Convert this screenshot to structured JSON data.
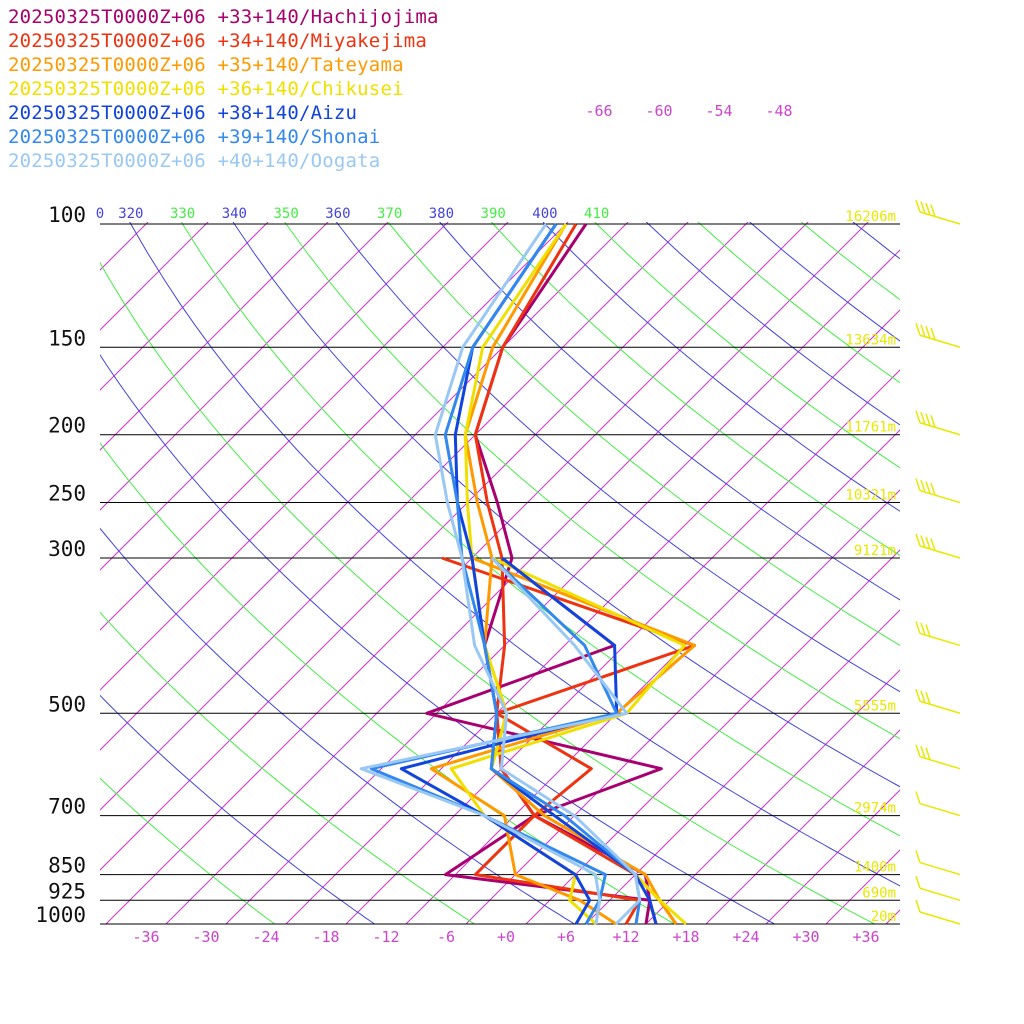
{
  "stations": [
    {
      "label": "20250325T0000Z+06 +33+140/Hachijojima",
      "color": "#a8006e"
    },
    {
      "label": "20250325T0000Z+06 +34+140/Miyakejima",
      "color": "#ee3311"
    },
    {
      "label": "20250325T0000Z+06 +35+140/Tateyama",
      "color": "#ff9900"
    },
    {
      "label": "20250325T0000Z+06 +36+140/Chikusei",
      "color": "#f0e000"
    },
    {
      "label": "20250325T0000Z+06 +38+140/Aizu",
      "color": "#1144dd"
    },
    {
      "label": "20250325T0000Z+06 +39+140/Shonai",
      "color": "#3388ee"
    },
    {
      "label": "20250325T0000Z+06 +40+140/Oogata",
      "color": "#99c8f4"
    }
  ],
  "colors": {
    "isotherm": "#cc33cc",
    "dry_adiabat_green": "#44ee44",
    "dry_adiabat_blue": "#4444dd",
    "isobar": "#000000",
    "height_label": "#e8e800",
    "wind_barb": "#e8e800"
  },
  "axes": {
    "pressure_ticks": [
      "100",
      "150",
      "200",
      "250",
      "300",
      "500",
      "700",
      "850",
      "925",
      "1000"
    ],
    "temperature_ticks": [
      "-36",
      "-30",
      "-24",
      "-18",
      "-12",
      "-6",
      "+0",
      "+6",
      "+12",
      "+18",
      "+24",
      "+30",
      "+36"
    ],
    "theta_labels": [
      "0",
      "320",
      "330",
      "340",
      "350",
      "360",
      "370",
      "380",
      "390",
      "400",
      "410"
    ],
    "height_labels": [
      "16206m",
      "13634m",
      "11761m",
      "10321m",
      "9121m",
      "5555m",
      "2974m",
      "1400m",
      "690m",
      "20m"
    ],
    "upper_isotherm_labels": [
      "-66",
      "-60",
      "-54",
      "-48"
    ]
  },
  "chart_data": {
    "type": "line",
    "title": "",
    "xlabel": "",
    "ylabel": "",
    "x_axis": "temperature (°C), skewed",
    "y_axis": "pressure (hPa), log scale",
    "ylim": [
      1000,
      100
    ],
    "xlim": [
      -40,
      40
    ],
    "series": [
      {
        "name": "20250325T0000Z+06 +33+140/Hachijojima",
        "points": [
          [
            1000,
            14,
            15
          ],
          [
            925,
            12,
            12
          ],
          [
            850,
            9,
            -11
          ],
          [
            700,
            -8,
            -8
          ],
          [
            600,
            -16,
            0
          ],
          [
            500,
            -22,
            -29
          ],
          [
            400,
            -30,
            -17
          ],
          [
            300,
            -36,
            -37
          ],
          [
            250,
            -43,
            null
          ],
          [
            200,
            -52,
            null
          ],
          [
            150,
            -58,
            null
          ],
          [
            100,
            -62,
            null
          ]
        ]
      },
      {
        "name": "20250325T0000Z+06 +34+140/Miyakejima",
        "points": [
          [
            1000,
            17,
            12
          ],
          [
            925,
            13,
            11
          ],
          [
            850,
            8,
            -8
          ],
          [
            700,
            -8,
            -8
          ],
          [
            600,
            -16,
            -7
          ],
          [
            500,
            -22,
            -22
          ],
          [
            400,
            -28,
            -9
          ],
          [
            300,
            -37,
            -43
          ],
          [
            250,
            -44,
            null
          ],
          [
            200,
            -52,
            null
          ],
          [
            150,
            -58,
            null
          ],
          [
            100,
            -63,
            null
          ]
        ]
      },
      {
        "name": "20250325T0000Z+06 +35+140/Tateyama",
        "points": [
          [
            1000,
            17,
            11
          ],
          [
            925,
            13,
            5
          ],
          [
            850,
            9,
            -4
          ],
          [
            700,
            -7,
            -11
          ],
          [
            600,
            -17,
            -23
          ],
          [
            500,
            -21,
            -10
          ],
          [
            400,
            -30,
            -9
          ],
          [
            300,
            -38,
            -40
          ],
          [
            250,
            -45,
            null
          ],
          [
            200,
            -53,
            null
          ],
          [
            150,
            -59,
            null
          ],
          [
            100,
            -64,
            null
          ]
        ]
      },
      {
        "name": "20250325T0000Z+06 +36+140/Chikusei",
        "points": [
          [
            1000,
            18,
            9
          ],
          [
            925,
            13,
            4
          ],
          [
            850,
            8,
            2
          ],
          [
            700,
            -6,
            -13
          ],
          [
            600,
            -17,
            -21
          ],
          [
            500,
            -21,
            -9
          ],
          [
            400,
            -30,
            -10
          ],
          [
            300,
            -40,
            -38
          ],
          [
            250,
            -46,
            null
          ],
          [
            200,
            -53,
            null
          ],
          [
            150,
            -60,
            null
          ],
          [
            100,
            -64,
            null
          ]
        ]
      },
      {
        "name": "20250325T0000Z+06 +38+140/Aizu",
        "points": [
          [
            1000,
            15,
            7
          ],
          [
            925,
            12,
            6
          ],
          [
            850,
            8,
            2
          ],
          [
            700,
            -6,
            -13
          ],
          [
            600,
            -17,
            -26
          ],
          [
            500,
            -22,
            -10
          ],
          [
            400,
            -30,
            -17
          ],
          [
            300,
            -40,
            -37
          ],
          [
            250,
            -47,
            null
          ],
          [
            200,
            -54,
            null
          ],
          [
            150,
            -61,
            null
          ],
          [
            100,
            -65,
            null
          ]
        ]
      },
      {
        "name": "20250325T0000Z+06 +39+140/Shonai",
        "points": [
          [
            1000,
            13,
            8
          ],
          [
            925,
            11,
            7
          ],
          [
            850,
            8,
            5
          ],
          [
            700,
            -5,
            -13
          ],
          [
            600,
            -17,
            -29
          ],
          [
            500,
            -22,
            -10
          ],
          [
            400,
            -30,
            -20
          ],
          [
            300,
            -41,
            -38
          ],
          [
            250,
            -47,
            null
          ],
          [
            200,
            -55,
            null
          ],
          [
            150,
            -61,
            null
          ],
          [
            100,
            -65,
            null
          ]
        ]
      },
      {
        "name": "20250325T0000Z+06 +40+140/Oogata",
        "points": [
          [
            1000,
            11,
            9
          ],
          [
            925,
            11,
            7
          ],
          [
            850,
            8,
            4
          ],
          [
            700,
            -4,
            -13
          ],
          [
            600,
            -16,
            -30
          ],
          [
            500,
            -21,
            -9
          ],
          [
            400,
            -31,
            -21
          ],
          [
            300,
            -41,
            -38
          ],
          [
            250,
            -48,
            null
          ],
          [
            200,
            -56,
            null
          ],
          [
            150,
            -62,
            null
          ],
          [
            100,
            -66,
            null
          ]
        ]
      }
    ],
    "point_format": [
      "pressure_hPa",
      "temperature_C",
      "dewpoint_C"
    ],
    "grid": true,
    "legend_position": "top-left"
  }
}
